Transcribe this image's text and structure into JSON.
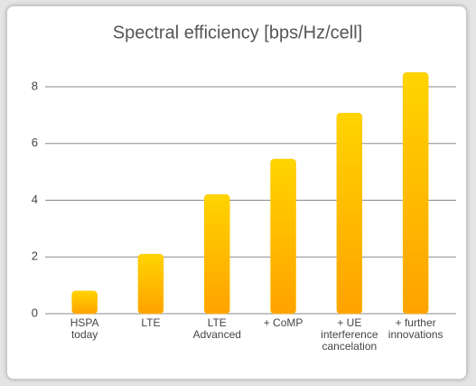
{
  "chart_data": {
    "type": "bar",
    "title": "Spectral efficiency [bps/Hz/cell]",
    "categories": [
      "HSPA\ntoday",
      "LTE",
      "LTE\nAdvanced",
      "+ CoMP",
      "+ UE\ninterference\ncancelation",
      "+ further\ninnovations"
    ],
    "values": [
      0.8,
      2.1,
      4.2,
      5.45,
      7.07,
      8.5
    ],
    "color": "#ffc400",
    "ylim": [
      0,
      9
    ],
    "yticks": [
      0,
      2,
      4,
      6,
      8
    ],
    "grid": true
  }
}
